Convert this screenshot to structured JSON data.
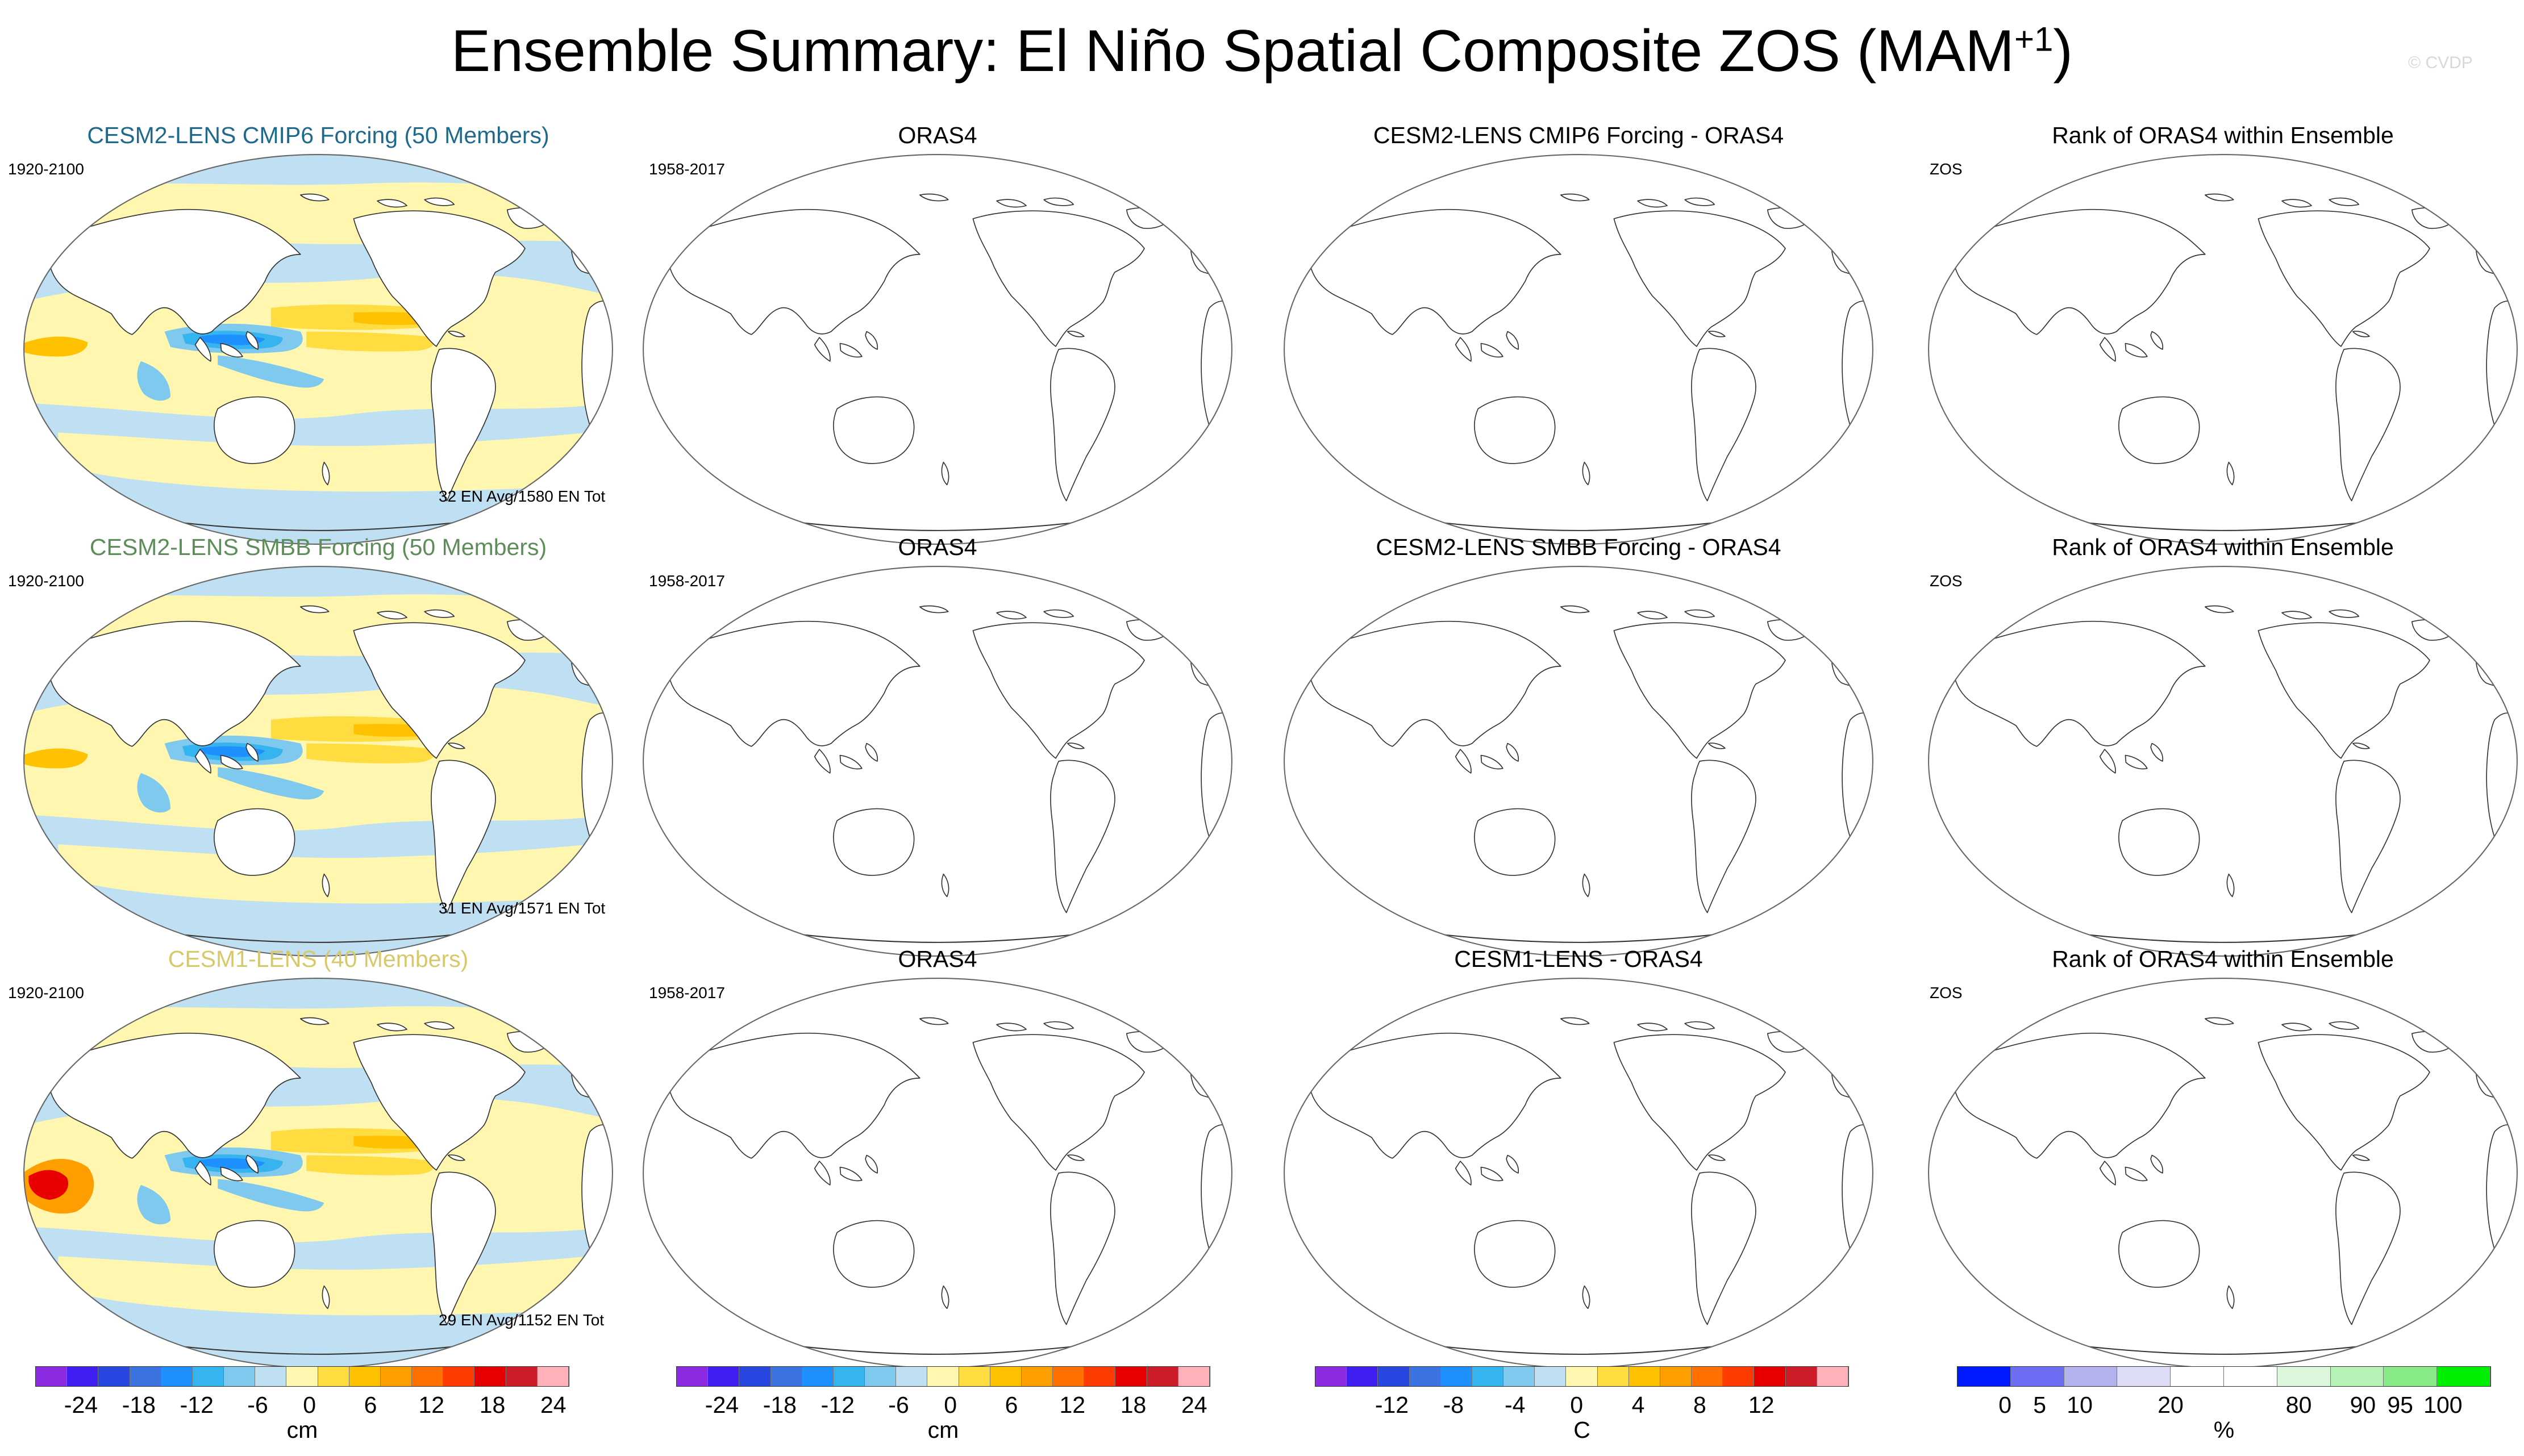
{
  "title": {
    "main": "Ensemble Summary: El Niño Spatial Composite ZOS (MAM",
    "sup": "+1",
    "end": ")"
  },
  "watermark": "© CVDP",
  "rows": [
    {
      "ens_title": "CESM2-LENS CMIP6 Forcing (50 Members)",
      "ens_title_color": "#1f6a8c",
      "ens_years": "1920-2100",
      "ens_stats": "32 EN Avg/1580 EN Tot",
      "obs_title": "ORAS4",
      "obs_years": "1958-2017",
      "diff_title": "CESM2-LENS CMIP6 Forcing - ORAS4",
      "rank_title": "Rank of ORAS4 within Ensemble",
      "rank_var": "ZOS"
    },
    {
      "ens_title": "CESM2-LENS SMBB Forcing (50 Members)",
      "ens_title_color": "#5e8d5a",
      "ens_years": "1920-2100",
      "ens_stats": "31 EN Avg/1571 EN Tot",
      "obs_title": "ORAS4",
      "obs_years": "1958-2017",
      "diff_title": "CESM2-LENS SMBB Forcing - ORAS4",
      "rank_title": "Rank of ORAS4 within Ensemble",
      "rank_var": "ZOS"
    },
    {
      "ens_title": "CESM1-LENS (40 Members)",
      "ens_title_color": "#d7c96a",
      "ens_years": "1920-2100",
      "ens_stats": "29 EN Avg/1152 EN Tot",
      "obs_title": "ORAS4",
      "obs_years": "1958-2017",
      "diff_title": "CESM1-LENS - ORAS4",
      "rank_title": "Rank of ORAS4 within Ensemble",
      "rank_var": "ZOS"
    }
  ],
  "colorbars": [
    {
      "units": "cm",
      "labels": [
        "-24",
        "-18",
        "-12",
        "-6",
        "0",
        "6",
        "12",
        "18",
        "24"
      ],
      "colors": [
        "#8a2be2",
        "#3e1ef0",
        "#2746e0",
        "#3a72e0",
        "#1e90ff",
        "#36b4f0",
        "#7fc8ee",
        "#bfe0f2",
        "#fff7b0",
        "#ffdc40",
        "#ffc200",
        "#ff9e00",
        "#ff7000",
        "#ff3c00",
        "#e80000",
        "#cc1c28",
        "#ffb0b8"
      ]
    },
    {
      "units": "cm",
      "labels": [
        "-24",
        "-18",
        "-12",
        "-6",
        "0",
        "6",
        "12",
        "18",
        "24"
      ],
      "colors": [
        "#8a2be2",
        "#3e1ef0",
        "#2746e0",
        "#3a72e0",
        "#1e90ff",
        "#36b4f0",
        "#7fc8ee",
        "#bfe0f2",
        "#fff7b0",
        "#ffdc40",
        "#ffc200",
        "#ff9e00",
        "#ff7000",
        "#ff3c00",
        "#e80000",
        "#cc1c28",
        "#ffb0b8"
      ]
    },
    {
      "units": "C",
      "labels": [
        "-12",
        "-8",
        "-4",
        "0",
        "4",
        "8",
        "12"
      ],
      "colors": [
        "#8a2be2",
        "#3e1ef0",
        "#2746e0",
        "#3a72e0",
        "#1e90ff",
        "#36b4f0",
        "#7fc8ee",
        "#bfe0f2",
        "#fff7b0",
        "#ffdc40",
        "#ffc200",
        "#ff9e00",
        "#ff7000",
        "#ff3c00",
        "#e80000",
        "#cc1c28",
        "#ffb0b8"
      ]
    },
    {
      "units": "%",
      "labels": [
        "0",
        "5",
        "10",
        "20",
        "80",
        "90",
        "95",
        "100"
      ],
      "colors": [
        "#0019ff",
        "#6e6ef5",
        "#b3b3ee",
        "#dcdcf5",
        "#ffffff",
        "#ffffff",
        "#dcf7dc",
        "#b6f2b6",
        "#87ec87",
        "#00ee00"
      ]
    }
  ]
}
